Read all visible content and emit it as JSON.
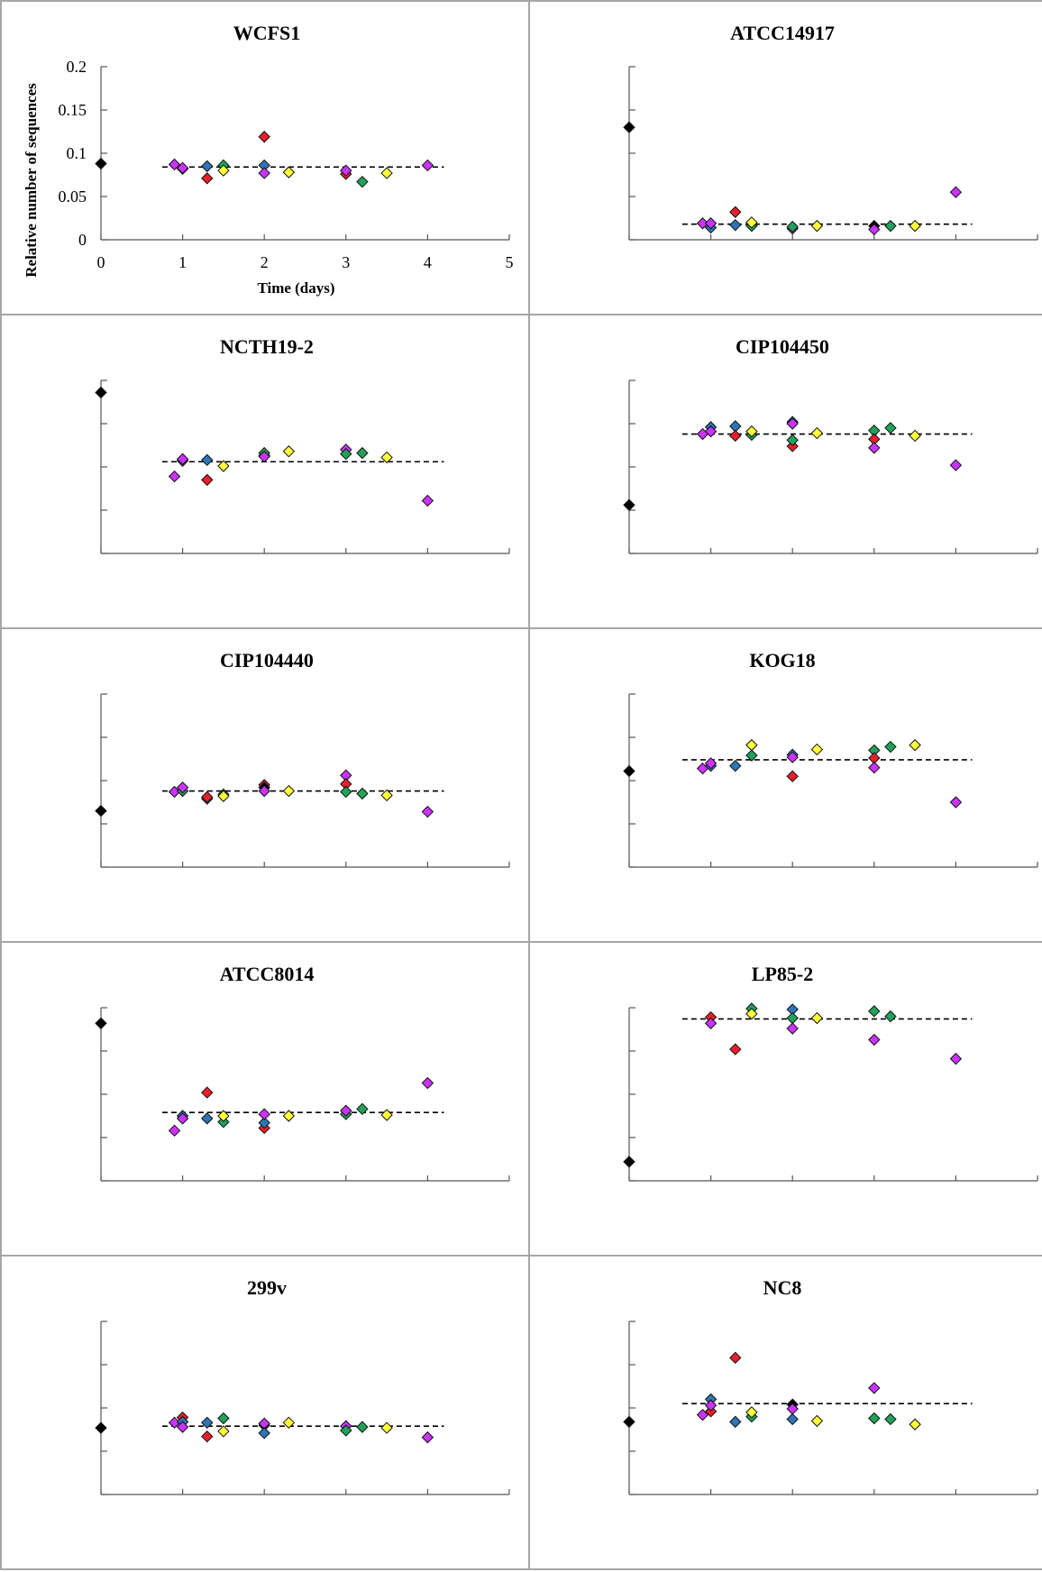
{
  "colors": {
    "black": "#000000",
    "blue": "#2e75b6",
    "red": "#e8202a",
    "green": "#1fa35a",
    "yellow": "#ffff3b",
    "magenta": "#cc33ff",
    "panel_border": "#a6a6a6"
  },
  "chart_data": [
    {
      "type": "scatter",
      "title": "WCFS1",
      "xlabel": "Time (days)",
      "ylabel": "Relative number of  sequences",
      "xlim": [
        0,
        5
      ],
      "ylim": [
        0,
        0.2
      ],
      "x_ticks": [
        "0",
        "1",
        "2",
        "3",
        "4",
        "5"
      ],
      "y_ticks": [
        "0",
        "0.05",
        "0.1",
        "0.15",
        "0.2"
      ],
      "mean_line": {
        "y": 0.084,
        "x_range": [
          0.75,
          4.2
        ],
        "style": "dashed"
      },
      "points": [
        {
          "x": 0,
          "y": 0.088,
          "color": "black"
        },
        {
          "x": 0.9,
          "y": 0.087,
          "color": "magenta"
        },
        {
          "x": 1.0,
          "y": 0.082,
          "color": "black"
        },
        {
          "x": 1.0,
          "y": 0.083,
          "color": "magenta"
        },
        {
          "x": 1.3,
          "y": 0.085,
          "color": "blue"
        },
        {
          "x": 1.3,
          "y": 0.071,
          "color": "red"
        },
        {
          "x": 1.5,
          "y": 0.086,
          "color": "green"
        },
        {
          "x": 1.5,
          "y": 0.08,
          "color": "yellow"
        },
        {
          "x": 2.0,
          "y": 0.119,
          "color": "red"
        },
        {
          "x": 2.0,
          "y": 0.086,
          "color": "blue"
        },
        {
          "x": 2.0,
          "y": 0.077,
          "color": "magenta"
        },
        {
          "x": 2.3,
          "y": 0.078,
          "color": "yellow"
        },
        {
          "x": 3.0,
          "y": 0.076,
          "color": "red"
        },
        {
          "x": 3.0,
          "y": 0.08,
          "color": "magenta"
        },
        {
          "x": 3.2,
          "y": 0.067,
          "color": "green"
        },
        {
          "x": 3.5,
          "y": 0.077,
          "color": "yellow"
        },
        {
          "x": 4.0,
          "y": 0.086,
          "color": "magenta"
        }
      ]
    },
    {
      "type": "scatter",
      "title": "ATCC14917",
      "xlim": [
        0,
        5
      ],
      "ylim": [
        0,
        0.2
      ],
      "mean_line": {
        "y": 0.018,
        "x_range": [
          0.65,
          4.2
        ],
        "style": "dashed"
      },
      "points": [
        {
          "x": 0,
          "y": 0.13,
          "color": "black"
        },
        {
          "x": 0.9,
          "y": 0.019,
          "color": "magenta"
        },
        {
          "x": 1.0,
          "y": 0.014,
          "color": "blue"
        },
        {
          "x": 1.0,
          "y": 0.019,
          "color": "magenta"
        },
        {
          "x": 1.3,
          "y": 0.017,
          "color": "blue"
        },
        {
          "x": 1.3,
          "y": 0.032,
          "color": "red"
        },
        {
          "x": 1.5,
          "y": 0.016,
          "color": "green"
        },
        {
          "x": 1.5,
          "y": 0.02,
          "color": "yellow"
        },
        {
          "x": 2.0,
          "y": 0.013,
          "color": "magenta"
        },
        {
          "x": 2.0,
          "y": 0.015,
          "color": "green"
        },
        {
          "x": 2.3,
          "y": 0.016,
          "color": "yellow"
        },
        {
          "x": 3.0,
          "y": 0.016,
          "color": "black"
        },
        {
          "x": 3.0,
          "y": 0.012,
          "color": "magenta"
        },
        {
          "x": 3.2,
          "y": 0.016,
          "color": "green"
        },
        {
          "x": 3.5,
          "y": 0.016,
          "color": "yellow"
        },
        {
          "x": 4.0,
          "y": 0.055,
          "color": "magenta"
        }
      ]
    },
    {
      "type": "scatter",
      "title": "NCTH19-2",
      "xlim": [
        0,
        5
      ],
      "ylim": [
        0,
        0.2
      ],
      "mean_line": {
        "y": 0.106,
        "x_range": [
          0.75,
          4.2
        ],
        "style": "dashed"
      },
      "points": [
        {
          "x": 0,
          "y": 0.186,
          "color": "black"
        },
        {
          "x": 0.9,
          "y": 0.089,
          "color": "magenta"
        },
        {
          "x": 1.0,
          "y": 0.107,
          "color": "blue"
        },
        {
          "x": 1.0,
          "y": 0.109,
          "color": "magenta"
        },
        {
          "x": 1.3,
          "y": 0.108,
          "color": "blue"
        },
        {
          "x": 1.3,
          "y": 0.085,
          "color": "red"
        },
        {
          "x": 1.5,
          "y": 0.101,
          "color": "yellow"
        },
        {
          "x": 2.0,
          "y": 0.113,
          "color": "black"
        },
        {
          "x": 2.0,
          "y": 0.116,
          "color": "green"
        },
        {
          "x": 2.0,
          "y": 0.112,
          "color": "magenta"
        },
        {
          "x": 2.3,
          "y": 0.118,
          "color": "yellow"
        },
        {
          "x": 3.0,
          "y": 0.12,
          "color": "magenta"
        },
        {
          "x": 3.0,
          "y": 0.115,
          "color": "green"
        },
        {
          "x": 3.2,
          "y": 0.116,
          "color": "green"
        },
        {
          "x": 3.5,
          "y": 0.111,
          "color": "yellow"
        },
        {
          "x": 4.0,
          "y": 0.061,
          "color": "magenta"
        }
      ]
    },
    {
      "type": "scatter",
      "title": "CIP104450",
      "xlim": [
        0,
        5
      ],
      "ylim": [
        0,
        0.2
      ],
      "mean_line": {
        "y": 0.138,
        "x_range": [
          0.65,
          4.2
        ],
        "style": "dashed"
      },
      "points": [
        {
          "x": 0,
          "y": 0.056,
          "color": "black"
        },
        {
          "x": 0.9,
          "y": 0.138,
          "color": "magenta"
        },
        {
          "x": 1.0,
          "y": 0.146,
          "color": "blue"
        },
        {
          "x": 1.0,
          "y": 0.141,
          "color": "magenta"
        },
        {
          "x": 1.3,
          "y": 0.147,
          "color": "blue"
        },
        {
          "x": 1.3,
          "y": 0.136,
          "color": "red"
        },
        {
          "x": 1.5,
          "y": 0.137,
          "color": "green"
        },
        {
          "x": 1.5,
          "y": 0.141,
          "color": "yellow"
        },
        {
          "x": 2.0,
          "y": 0.124,
          "color": "red"
        },
        {
          "x": 2.0,
          "y": 0.131,
          "color": "green"
        },
        {
          "x": 2.0,
          "y": 0.152,
          "color": "blue"
        },
        {
          "x": 2.0,
          "y": 0.15,
          "color": "magenta"
        },
        {
          "x": 2.3,
          "y": 0.139,
          "color": "yellow"
        },
        {
          "x": 3.0,
          "y": 0.142,
          "color": "green"
        },
        {
          "x": 3.0,
          "y": 0.132,
          "color": "red"
        },
        {
          "x": 3.0,
          "y": 0.122,
          "color": "magenta"
        },
        {
          "x": 3.2,
          "y": 0.145,
          "color": "green"
        },
        {
          "x": 3.5,
          "y": 0.136,
          "color": "yellow"
        },
        {
          "x": 4.0,
          "y": 0.102,
          "color": "magenta"
        }
      ]
    },
    {
      "type": "scatter",
      "title": "CIP104440",
      "xlim": [
        0,
        5
      ],
      "ylim": [
        0,
        0.2
      ],
      "mean_line": {
        "y": 0.088,
        "x_range": [
          0.75,
          4.2
        ],
        "style": "dashed"
      },
      "points": [
        {
          "x": 0,
          "y": 0.065,
          "color": "black"
        },
        {
          "x": 0.9,
          "y": 0.087,
          "color": "magenta"
        },
        {
          "x": 1.0,
          "y": 0.088,
          "color": "green"
        },
        {
          "x": 1.0,
          "y": 0.092,
          "color": "magenta"
        },
        {
          "x": 1.3,
          "y": 0.079,
          "color": "blue"
        },
        {
          "x": 1.3,
          "y": 0.081,
          "color": "red"
        },
        {
          "x": 1.5,
          "y": 0.084,
          "color": "green"
        },
        {
          "x": 1.5,
          "y": 0.082,
          "color": "yellow"
        },
        {
          "x": 2.0,
          "y": 0.095,
          "color": "red"
        },
        {
          "x": 2.0,
          "y": 0.092,
          "color": "black"
        },
        {
          "x": 2.0,
          "y": 0.088,
          "color": "magenta"
        },
        {
          "x": 2.3,
          "y": 0.088,
          "color": "yellow"
        },
        {
          "x": 3.0,
          "y": 0.106,
          "color": "magenta"
        },
        {
          "x": 3.0,
          "y": 0.096,
          "color": "red"
        },
        {
          "x": 3.0,
          "y": 0.087,
          "color": "green"
        },
        {
          "x": 3.2,
          "y": 0.085,
          "color": "green"
        },
        {
          "x": 3.5,
          "y": 0.083,
          "color": "yellow"
        },
        {
          "x": 4.0,
          "y": 0.064,
          "color": "magenta"
        }
      ]
    },
    {
      "type": "scatter",
      "title": "KOG18",
      "xlim": [
        0,
        5
      ],
      "ylim": [
        0,
        0.2
      ],
      "mean_line": {
        "y": 0.124,
        "x_range": [
          0.65,
          4.2
        ],
        "style": "dashed"
      },
      "points": [
        {
          "x": 0,
          "y": 0.111,
          "color": "black"
        },
        {
          "x": 0.9,
          "y": 0.114,
          "color": "magenta"
        },
        {
          "x": 1.0,
          "y": 0.117,
          "color": "blue"
        },
        {
          "x": 1.0,
          "y": 0.12,
          "color": "magenta"
        },
        {
          "x": 1.3,
          "y": 0.117,
          "color": "blue"
        },
        {
          "x": 1.5,
          "y": 0.141,
          "color": "yellow"
        },
        {
          "x": 1.5,
          "y": 0.129,
          "color": "green"
        },
        {
          "x": 2.0,
          "y": 0.13,
          "color": "blue"
        },
        {
          "x": 2.0,
          "y": 0.127,
          "color": "magenta"
        },
        {
          "x": 2.0,
          "y": 0.105,
          "color": "red"
        },
        {
          "x": 2.3,
          "y": 0.136,
          "color": "yellow"
        },
        {
          "x": 3.0,
          "y": 0.135,
          "color": "green"
        },
        {
          "x": 3.0,
          "y": 0.126,
          "color": "red"
        },
        {
          "x": 3.0,
          "y": 0.115,
          "color": "magenta"
        },
        {
          "x": 3.2,
          "y": 0.139,
          "color": "green"
        },
        {
          "x": 3.5,
          "y": 0.141,
          "color": "yellow"
        },
        {
          "x": 4.0,
          "y": 0.075,
          "color": "magenta"
        }
      ]
    },
    {
      "type": "scatter",
      "title": "ATCC8014",
      "xlim": [
        0,
        5
      ],
      "ylim": [
        0,
        0.2
      ],
      "mean_line": {
        "y": 0.079,
        "x_range": [
          0.75,
          4.2
        ],
        "style": "dashed"
      },
      "points": [
        {
          "x": 0,
          "y": 0.182,
          "color": "black"
        },
        {
          "x": 0.9,
          "y": 0.058,
          "color": "magenta"
        },
        {
          "x": 1.0,
          "y": 0.075,
          "color": "blue"
        },
        {
          "x": 1.0,
          "y": 0.072,
          "color": "magenta"
        },
        {
          "x": 1.3,
          "y": 0.102,
          "color": "red"
        },
        {
          "x": 1.3,
          "y": 0.072,
          "color": "blue"
        },
        {
          "x": 1.5,
          "y": 0.068,
          "color": "green"
        },
        {
          "x": 1.5,
          "y": 0.075,
          "color": "yellow"
        },
        {
          "x": 2.0,
          "y": 0.061,
          "color": "red"
        },
        {
          "x": 2.0,
          "y": 0.067,
          "color": "blue"
        },
        {
          "x": 2.0,
          "y": 0.077,
          "color": "magenta"
        },
        {
          "x": 2.3,
          "y": 0.075,
          "color": "yellow"
        },
        {
          "x": 3.0,
          "y": 0.077,
          "color": "green"
        },
        {
          "x": 3.0,
          "y": 0.081,
          "color": "magenta"
        },
        {
          "x": 3.2,
          "y": 0.083,
          "color": "green"
        },
        {
          "x": 3.5,
          "y": 0.076,
          "color": "yellow"
        },
        {
          "x": 4.0,
          "y": 0.113,
          "color": "magenta"
        }
      ]
    },
    {
      "type": "scatter",
      "title": "LP85-2",
      "xlim": [
        0,
        5
      ],
      "ylim": [
        0,
        0.2
      ],
      "mean_line": {
        "y": 0.187,
        "x_range": [
          0.65,
          4.2
        ],
        "style": "dashed"
      },
      "points": [
        {
          "x": 0,
          "y": 0.022,
          "color": "black"
        },
        {
          "x": 1.0,
          "y": 0.189,
          "color": "red"
        },
        {
          "x": 1.0,
          "y": 0.182,
          "color": "magenta"
        },
        {
          "x": 1.3,
          "y": 0.152,
          "color": "red"
        },
        {
          "x": 1.5,
          "y": 0.199,
          "color": "green"
        },
        {
          "x": 1.5,
          "y": 0.193,
          "color": "yellow"
        },
        {
          "x": 2.0,
          "y": 0.198,
          "color": "blue"
        },
        {
          "x": 2.0,
          "y": 0.188,
          "color": "green"
        },
        {
          "x": 2.0,
          "y": 0.176,
          "color": "magenta"
        },
        {
          "x": 2.3,
          "y": 0.188,
          "color": "yellow"
        },
        {
          "x": 3.0,
          "y": 0.196,
          "color": "green"
        },
        {
          "x": 3.0,
          "y": 0.163,
          "color": "magenta"
        },
        {
          "x": 3.2,
          "y": 0.19,
          "color": "green"
        },
        {
          "x": 4.0,
          "y": 0.141,
          "color": "magenta"
        }
      ]
    },
    {
      "type": "scatter",
      "title": "299v",
      "xlim": [
        0,
        5
      ],
      "ylim": [
        0,
        0.2
      ],
      "mean_line": {
        "y": 0.079,
        "x_range": [
          0.75,
          4.2
        ],
        "style": "dashed"
      },
      "points": [
        {
          "x": 0,
          "y": 0.077,
          "color": "black"
        },
        {
          "x": 0.9,
          "y": 0.083,
          "color": "magenta"
        },
        {
          "x": 1.0,
          "y": 0.089,
          "color": "red"
        },
        {
          "x": 1.0,
          "y": 0.084,
          "color": "blue"
        },
        {
          "x": 1.0,
          "y": 0.078,
          "color": "magenta"
        },
        {
          "x": 1.3,
          "y": 0.083,
          "color": "blue"
        },
        {
          "x": 1.3,
          "y": 0.067,
          "color": "red"
        },
        {
          "x": 1.5,
          "y": 0.088,
          "color": "green"
        },
        {
          "x": 1.5,
          "y": 0.073,
          "color": "yellow"
        },
        {
          "x": 2.0,
          "y": 0.08,
          "color": "black"
        },
        {
          "x": 2.0,
          "y": 0.082,
          "color": "magenta"
        },
        {
          "x": 2.0,
          "y": 0.071,
          "color": "blue"
        },
        {
          "x": 2.3,
          "y": 0.083,
          "color": "yellow"
        },
        {
          "x": 3.0,
          "y": 0.079,
          "color": "magenta"
        },
        {
          "x": 3.0,
          "y": 0.074,
          "color": "green"
        },
        {
          "x": 3.2,
          "y": 0.078,
          "color": "green"
        },
        {
          "x": 3.5,
          "y": 0.077,
          "color": "yellow"
        },
        {
          "x": 4.0,
          "y": 0.066,
          "color": "magenta"
        }
      ]
    },
    {
      "type": "scatter",
      "title": "NC8",
      "xlim": [
        0,
        5
      ],
      "ylim": [
        0,
        0.2
      ],
      "mean_line": {
        "y": 0.105,
        "x_range": [
          0.65,
          4.2
        ],
        "style": "dashed"
      },
      "points": [
        {
          "x": 0,
          "y": 0.084,
          "color": "black"
        },
        {
          "x": 0.9,
          "y": 0.092,
          "color": "magenta"
        },
        {
          "x": 1.0,
          "y": 0.11,
          "color": "blue"
        },
        {
          "x": 1.0,
          "y": 0.096,
          "color": "red"
        },
        {
          "x": 1.0,
          "y": 0.103,
          "color": "magenta"
        },
        {
          "x": 1.3,
          "y": 0.158,
          "color": "red"
        },
        {
          "x": 1.3,
          "y": 0.084,
          "color": "blue"
        },
        {
          "x": 1.5,
          "y": 0.09,
          "color": "green"
        },
        {
          "x": 1.5,
          "y": 0.095,
          "color": "yellow"
        },
        {
          "x": 2.0,
          "y": 0.104,
          "color": "black"
        },
        {
          "x": 2.0,
          "y": 0.099,
          "color": "magenta"
        },
        {
          "x": 2.0,
          "y": 0.087,
          "color": "blue"
        },
        {
          "x": 2.3,
          "y": 0.085,
          "color": "yellow"
        },
        {
          "x": 3.0,
          "y": 0.123,
          "color": "magenta"
        },
        {
          "x": 3.0,
          "y": 0.088,
          "color": "green"
        },
        {
          "x": 3.2,
          "y": 0.087,
          "color": "green"
        },
        {
          "x": 3.5,
          "y": 0.081,
          "color": "yellow"
        }
      ]
    }
  ]
}
